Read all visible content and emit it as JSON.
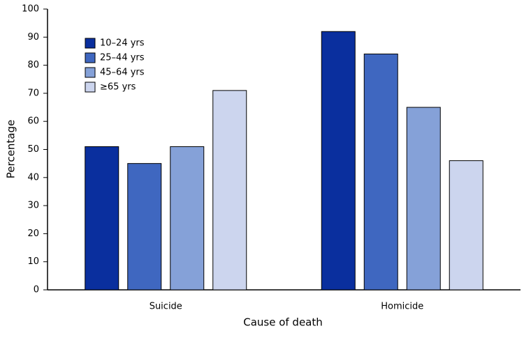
{
  "chart_data": {
    "type": "bar",
    "x_label": "Cause of death",
    "y_label": "Percentage",
    "categories": [
      "Suicide",
      "Homicide"
    ],
    "series": [
      {
        "name": "10–24 yrs",
        "color": "#0a2f9e",
        "values": [
          51,
          92
        ]
      },
      {
        "name": "25–44 yrs",
        "color": "#3f67c0",
        "values": [
          45,
          84
        ]
      },
      {
        "name": "45–64 yrs",
        "color": "#85a1d8",
        "values": [
          51,
          65
        ]
      },
      {
        "name": "≥65 yrs",
        "color": "#ccd5ee",
        "values": [
          71,
          46
        ]
      }
    ],
    "ylim": [
      0,
      100
    ],
    "yticks": [
      0,
      10,
      20,
      30,
      40,
      50,
      60,
      70,
      80,
      90,
      100
    ],
    "legend": "upper-left",
    "grid": false
  }
}
